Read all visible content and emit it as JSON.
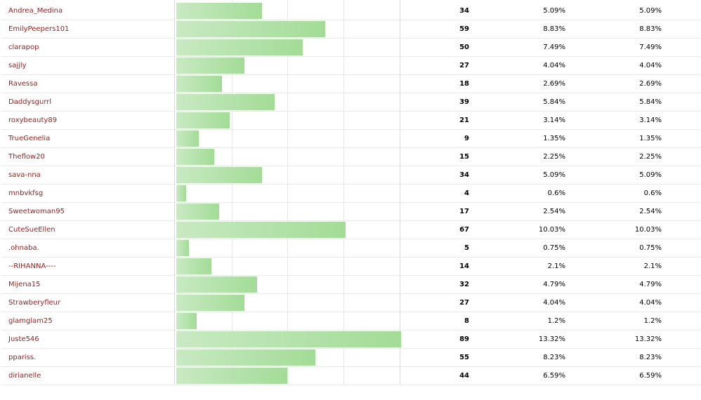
{
  "table": {
    "bar_max_count": 89,
    "bar_color_start": "#c9e9c3",
    "bar_color_end": "#a2dc96",
    "name_color": "#9b1b1b",
    "rows": [
      {
        "name": "Andrea_Medina",
        "count": "34",
        "percent": "5.09%",
        "percent_total": "5.09%"
      },
      {
        "name": "EmilyPeepers101",
        "count": "59",
        "percent": "8.83%",
        "percent_total": "8.83%"
      },
      {
        "name": "clarapop",
        "count": "50",
        "percent": "7.49%",
        "percent_total": "7.49%"
      },
      {
        "name": "sajjly",
        "count": "27",
        "percent": "4.04%",
        "percent_total": "4.04%"
      },
      {
        "name": "Ravessa",
        "count": "18",
        "percent": "2.69%",
        "percent_total": "2.69%"
      },
      {
        "name": "Daddysgurrl",
        "count": "39",
        "percent": "5.84%",
        "percent_total": "5.84%"
      },
      {
        "name": "roxybeauty89",
        "count": "21",
        "percent": "3.14%",
        "percent_total": "3.14%"
      },
      {
        "name": "TrueGenelia",
        "count": "9",
        "percent": "1.35%",
        "percent_total": "1.35%"
      },
      {
        "name": "Theflow20",
        "count": "15",
        "percent": "2.25%",
        "percent_total": "2.25%"
      },
      {
        "name": "sava-nna",
        "count": "34",
        "percent": "5.09%",
        "percent_total": "5.09%"
      },
      {
        "name": "mnbvkfsg",
        "count": "4",
        "percent": "0.6%",
        "percent_total": "0.6%"
      },
      {
        "name": "Sweetwoman95",
        "count": "17",
        "percent": "2.54%",
        "percent_total": "2.54%"
      },
      {
        "name": "CuteSueEllen",
        "count": "67",
        "percent": "10.03%",
        "percent_total": "10.03%"
      },
      {
        "name": ".ohnaba.",
        "count": "5",
        "percent": "0.75%",
        "percent_total": "0.75%"
      },
      {
        "name": "--RIHANNA----",
        "count": "14",
        "percent": "2.1%",
        "percent_total": "2.1%"
      },
      {
        "name": "Mijena15",
        "count": "32",
        "percent": "4.79%",
        "percent_total": "4.79%"
      },
      {
        "name": "Strawberyfleur",
        "count": "27",
        "percent": "4.04%",
        "percent_total": "4.04%"
      },
      {
        "name": "glamglam25",
        "count": "8",
        "percent": "1.2%",
        "percent_total": "1.2%"
      },
      {
        "name": "Juste546",
        "count": "89",
        "percent": "13.32%",
        "percent_total": "13.32%"
      },
      {
        "name": "ppariss.",
        "count": "55",
        "percent": "8.23%",
        "percent_total": "8.23%"
      },
      {
        "name": "dirianelle",
        "count": "44",
        "percent": "6.59%",
        "percent_total": "6.59%"
      }
    ]
  }
}
